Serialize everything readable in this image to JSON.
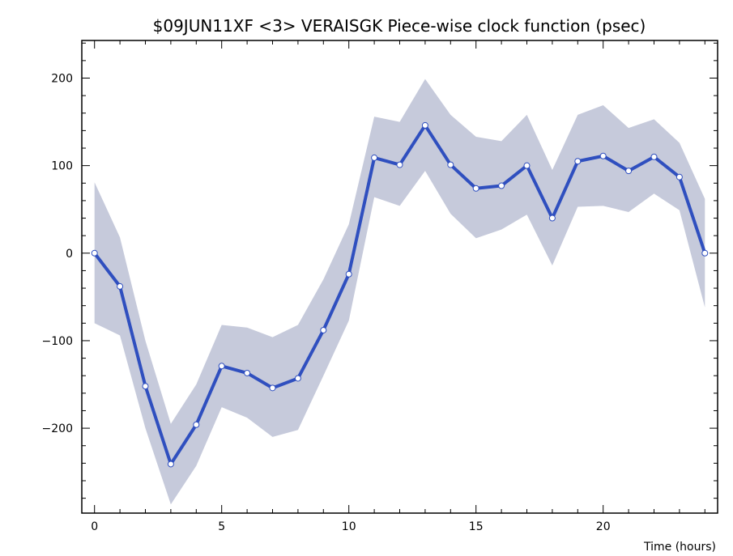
{
  "chart_data": {
    "type": "line",
    "title": "$09JUN11XF <3>  VERAISGK  Piece-wise clock function (psec)",
    "xlabel": "Time (hours)",
    "ylabel": "",
    "xlim": [
      -0.5,
      24.5
    ],
    "ylim": [
      -297,
      243
    ],
    "x_ticks": [
      0,
      5,
      10,
      15,
      20
    ],
    "y_ticks": [
      -200,
      -100,
      0,
      100,
      200
    ],
    "x_tick_labels": [
      "0",
      "5",
      "10",
      "15",
      "20"
    ],
    "y_tick_labels": [
      "−200",
      "−100",
      "0",
      "100",
      "200"
    ],
    "grid": false,
    "legend": "none",
    "colors": {
      "line": "#2f4fbf",
      "marker_fill": "#ffffff",
      "marker_stroke": "#2f4fbf",
      "band": "#c6cadb",
      "axis": "#000000"
    },
    "series": [
      {
        "x": [
          0,
          1,
          2,
          3,
          4,
          5,
          6,
          7,
          8,
          9,
          10,
          11,
          12,
          13,
          14,
          15,
          16,
          17,
          18,
          19,
          20,
          21,
          22,
          23,
          24
        ],
        "values": [
          0,
          -38,
          -152,
          -241,
          -196,
          -129,
          -137,
          -154,
          -143,
          -88,
          -24,
          109,
          101,
          146,
          101,
          74,
          77,
          100,
          40,
          105,
          111,
          94,
          110,
          87,
          0
        ],
        "upper": [
          81,
          18,
          -100,
          -195,
          -150,
          -82,
          -85,
          -96,
          -82,
          -30,
          33,
          156,
          150,
          199,
          158,
          133,
          128,
          158,
          95,
          158,
          169,
          143,
          153,
          126,
          62
        ],
        "lower": [
          -80,
          -94,
          -200,
          -287,
          -243,
          -176,
          -188,
          -210,
          -202,
          -140,
          -77,
          64,
          54,
          94,
          45,
          17,
          27,
          44,
          -14,
          53,
          54,
          47,
          68,
          49,
          -62
        ]
      }
    ]
  }
}
